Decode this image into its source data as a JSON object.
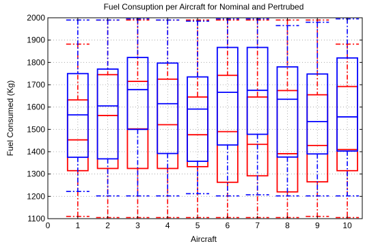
{
  "chart_data": {
    "type": "box",
    "title": "Fuel Consuption per Aircraft  for Nominal and Pertrubed",
    "xlabel": "Aircraft",
    "ylabel": "Fuel Consumed (Kg)",
    "xlim": [
      0,
      10.5
    ],
    "ylim": [
      1100,
      2000
    ],
    "xticks": [
      "0",
      "1",
      "2",
      "3",
      "4",
      "5",
      "6",
      "7",
      "8",
      "9",
      "10"
    ],
    "yticks": [
      "1100",
      "1200",
      "1300",
      "1400",
      "1500",
      "1600",
      "1700",
      "1800",
      "1900",
      "2000"
    ],
    "grid": true,
    "series": [
      {
        "color": "#ff0000",
        "boxes": [
          {
            "x": 1,
            "whisker_low": 1110,
            "q1": 1315,
            "median": 1453,
            "q3": 1632,
            "whisker_high": 1882
          },
          {
            "x": 2,
            "whisker_low": 1105,
            "q1": 1325,
            "median": 1562,
            "q3": 1745,
            "whisker_high": 1990
          },
          {
            "x": 3,
            "whisker_low": 1105,
            "q1": 1325,
            "median": 1502,
            "q3": 1715,
            "whisker_high": 1990
          },
          {
            "x": 4,
            "whisker_low": 1105,
            "q1": 1325,
            "median": 1521,
            "q3": 1725,
            "whisker_high": 1990
          },
          {
            "x": 5,
            "whisker_low": 1105,
            "q1": 1333,
            "median": 1476,
            "q3": 1645,
            "whisker_high": 1990
          },
          {
            "x": 6,
            "whisker_low": 1105,
            "q1": 1263,
            "median": 1490,
            "q3": 1742,
            "whisker_high": 1990
          },
          {
            "x": 7,
            "whisker_low": 1105,
            "q1": 1292,
            "median": 1433,
            "q3": 1645,
            "whisker_high": 1990
          },
          {
            "x": 8,
            "whisker_low": 1105,
            "q1": 1220,
            "median": 1391,
            "q3": 1674,
            "whisker_high": 1990
          },
          {
            "x": 9,
            "whisker_low": 1110,
            "q1": 1265,
            "median": 1428,
            "q3": 1655,
            "whisker_high": 1990
          },
          {
            "x": 10,
            "whisker_low": 1105,
            "q1": 1315,
            "median": 1410,
            "q3": 1692,
            "whisker_high": 1882
          }
        ]
      },
      {
        "color": "#0000ff",
        "boxes": [
          {
            "x": 1,
            "whisker_low": 1222,
            "q1": 1375,
            "median": 1565,
            "q3": 1750,
            "whisker_high": 1990
          },
          {
            "x": 2,
            "whisker_low": 1202,
            "q1": 1368,
            "median": 1605,
            "q3": 1770,
            "whisker_high": 1990
          },
          {
            "x": 3,
            "whisker_low": 1202,
            "q1": 1500,
            "median": 1678,
            "q3": 1822,
            "whisker_high": 1995
          },
          {
            "x": 4,
            "whisker_low": 1202,
            "q1": 1392,
            "median": 1615,
            "q3": 1797,
            "whisker_high": 1990
          },
          {
            "x": 5,
            "whisker_low": 1212,
            "q1": 1357,
            "median": 1591,
            "q3": 1735,
            "whisker_high": 1985
          },
          {
            "x": 6,
            "whisker_low": 1202,
            "q1": 1430,
            "median": 1666,
            "q3": 1867,
            "whisker_high": 1995
          },
          {
            "x": 7,
            "whisker_low": 1207,
            "q1": 1478,
            "median": 1675,
            "q3": 1867,
            "whisker_high": 1995
          },
          {
            "x": 8,
            "whisker_low": 1202,
            "q1": 1376,
            "median": 1635,
            "q3": 1780,
            "whisker_high": 1965
          },
          {
            "x": 9,
            "whisker_low": 1202,
            "q1": 1390,
            "median": 1535,
            "q3": 1748,
            "whisker_high": 1980
          },
          {
            "x": 10,
            "whisker_low": 1202,
            "q1": 1403,
            "median": 1556,
            "q3": 1820,
            "whisker_high": 1995
          }
        ]
      }
    ]
  }
}
